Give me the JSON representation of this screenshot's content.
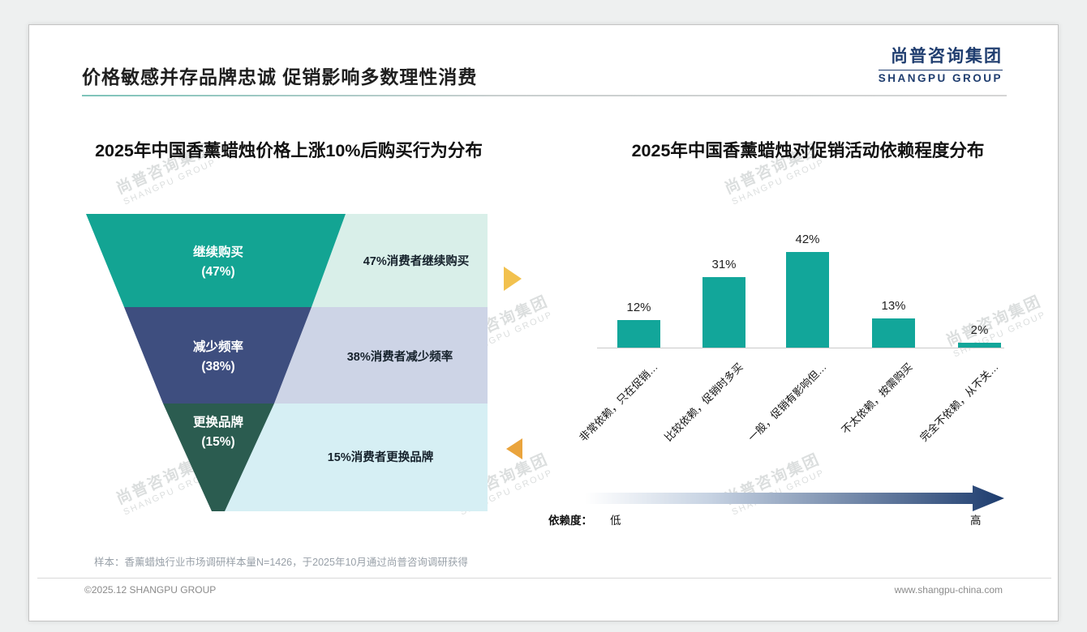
{
  "slide": {
    "title": "价格敏感并存品牌忠诚 促销影响多数理性消费",
    "logo": {
      "cn": "尚普咨询集团",
      "en": "SHANGPU GROUP"
    },
    "watermark": {
      "cn": "尚普咨询集团",
      "en": "SHANGPU GROUP"
    },
    "sample_note": "样本：香薰蜡烛行业市场调研样本量N=1426，于2025年10月通过尚普咨询调研获得",
    "footer": {
      "copyright": "©2025.12 SHANGPU GROUP",
      "website": "www.shangpu-china.com"
    }
  },
  "chart_data": [
    {
      "type": "funnel",
      "title": "2025年中国香薰蜡烛价格上涨10%后购买行为分布",
      "levels": [
        {
          "label": "继续购买",
          "value": 47,
          "value_label": "(47%)",
          "annotation": "47%消费者继续购买",
          "color": "#13a493",
          "annotation_bg": "#d9efe9"
        },
        {
          "label": "减少频率",
          "value": 38,
          "value_label": "(38%)",
          "annotation": "38%消费者减少频率",
          "color": "#3e4e7f",
          "annotation_bg": "#cdd4e6"
        },
        {
          "label": "更换品牌",
          "value": 15,
          "value_label": "(15%)",
          "annotation": "15%消费者更换品牌",
          "color": "#2b5c50",
          "annotation_bg": "#d6eff4"
        }
      ],
      "arrow_colors": {
        "right": "#f2c14e",
        "left": "#eaa43c"
      }
    },
    {
      "type": "bar",
      "title": "2025年中国香薰蜡烛对促销活动依赖程度分布",
      "categories": [
        "非常依赖，只在促销…",
        "比较依赖，促销时多买",
        "一般，促销有影响但…",
        "不太依赖，按需购买",
        "完全不依赖，从不关…"
      ],
      "values": [
        12,
        31,
        42,
        13,
        2
      ],
      "value_labels": [
        "12%",
        "31%",
        "42%",
        "13%",
        "2%"
      ],
      "bar_color": "#12a69a",
      "ylim": [
        0,
        45
      ],
      "grid": false,
      "legend_axis": {
        "label": "依赖度：",
        "low": "低",
        "high": "高"
      }
    }
  ]
}
